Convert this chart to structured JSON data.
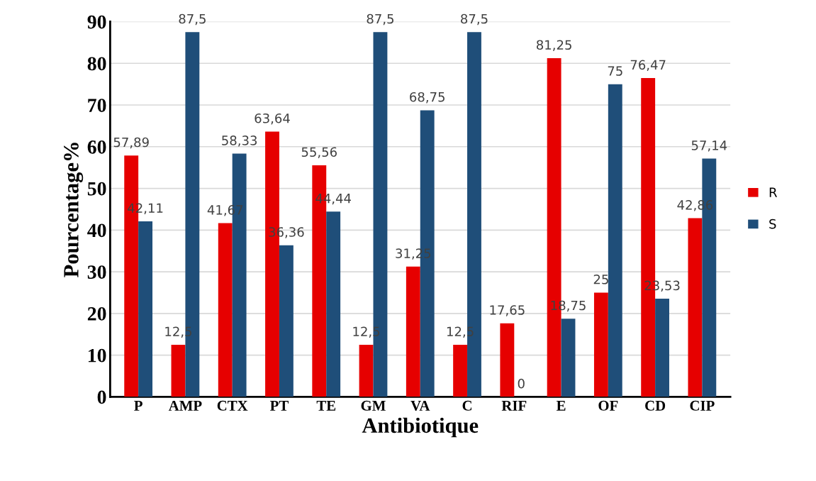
{
  "chart_data": {
    "type": "bar",
    "xlabel": "Antibiotique",
    "ylabel": "Pourcentage%",
    "categories": [
      "P",
      "AMP",
      "CTX",
      "PT",
      "TE",
      "GM",
      "VA",
      "C",
      "RIF",
      "E",
      "OF",
      "CD",
      "CIP"
    ],
    "series": [
      {
        "name": "R",
        "color": "#e60000",
        "values": [
          57.89,
          12.5,
          41.67,
          63.64,
          55.56,
          12.5,
          31.25,
          12.5,
          17.65,
          81.25,
          25,
          76.47,
          42.86
        ],
        "value_labels": [
          "57,89",
          "12,5",
          "41,67",
          "63,64",
          "55,56",
          "12,5",
          "31,25",
          "12,5",
          "17,65",
          "81,25",
          "25",
          "76,47",
          "42,86"
        ]
      },
      {
        "name": "S",
        "color": "#1f4e79",
        "values": [
          42.11,
          87.5,
          58.33,
          36.36,
          44.44,
          87.5,
          68.75,
          87.5,
          0,
          18.75,
          75,
          23.53,
          57.14
        ],
        "value_labels": [
          "42,11",
          "87,5",
          "58,33",
          "36,36",
          "44,44",
          "87,5",
          "68,75",
          "87,5",
          "0",
          "18,75",
          "75",
          "23,53",
          "57,14"
        ]
      }
    ],
    "ylim": [
      0,
      90
    ],
    "yticks": [
      0,
      10,
      20,
      30,
      40,
      50,
      60,
      70,
      80,
      90
    ],
    "grid": "y",
    "legend": "right"
  }
}
